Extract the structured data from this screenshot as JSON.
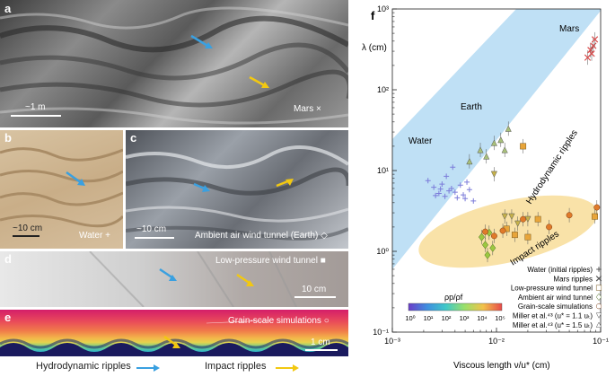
{
  "photos": {
    "a": {
      "label": "a",
      "scale": "~1 m",
      "caption": "Mars ×"
    },
    "b": {
      "label": "b",
      "scale": "~10 cm",
      "caption": "Water +"
    },
    "c": {
      "label": "c",
      "scale": "~10 cm",
      "caption": "Ambient air wind tunnel (Earth) ◇"
    },
    "d": {
      "label": "d",
      "scale": "10 cm",
      "caption": "Low-pressure wind tunnel ■"
    },
    "e": {
      "label": "e",
      "scale": "1 cm",
      "caption": "Grain-scale simulations ○"
    }
  },
  "bottom_legend": {
    "hydro": "Hydrodynamic ripples",
    "impact": "Impact ripples",
    "hydro_color": "#3aa0e0",
    "impact_color": "#f2c811"
  },
  "chart_data": {
    "type": "scatter",
    "panel_label": "f",
    "xlabel": "Viscous length ν/u* (cm)",
    "ylabel": "λ (cm)",
    "xscale": "log",
    "yscale": "log",
    "xlim": [
      0.001,
      0.1
    ],
    "ylim": [
      0.1,
      1000
    ],
    "x_ticks": [
      "10⁻³",
      "10⁻²",
      "10⁻¹"
    ],
    "y_ticks": [
      "10⁻¹",
      "10⁰",
      "10¹",
      "10²",
      "10³"
    ],
    "bands": [
      {
        "name": "Hydrodynamic ripples",
        "color": "#bfe0f5"
      },
      {
        "name": "Impact ripples",
        "color": "#f9e2a8"
      }
    ],
    "annotations": [
      "Mars",
      "Earth",
      "Water",
      "Hydrodynamic ripples",
      "Impact ripples"
    ],
    "colorbar": {
      "label": "ρp/ρf",
      "ticks": [
        "10⁰",
        "10¹",
        "10²",
        "10³",
        "10⁴",
        "10⁵"
      ]
    },
    "legend": [
      {
        "name": "Water (initial ripples)",
        "marker": "+"
      },
      {
        "name": "Mars ripples",
        "marker": "×"
      },
      {
        "name": "Low-pressure wind tunnel",
        "marker": "□"
      },
      {
        "name": "Ambient air wind tunnel",
        "marker": "◇"
      },
      {
        "name": "Grain-scale simulations",
        "marker": "○"
      },
      {
        "name": "Miller et al.⁴³ (u* = 1.1 uₜ)",
        "marker": "▽"
      },
      {
        "name": "Miller et al.⁴³ (u* = 1.5 uₜ)",
        "marker": "△"
      }
    ],
    "series": [
      {
        "name": "Water (initial ripples)",
        "marker": "+",
        "color": "#7b7bd9",
        "points": [
          [
            0.0022,
            7.5
          ],
          [
            0.0025,
            6.2
          ],
          [
            0.0028,
            5.2
          ],
          [
            0.003,
            6.8
          ],
          [
            0.0032,
            4.8
          ],
          [
            0.0033,
            8.5
          ],
          [
            0.0035,
            5.6
          ],
          [
            0.0037,
            6.0
          ],
          [
            0.004,
            5.4
          ],
          [
            0.0042,
            4.6
          ],
          [
            0.0045,
            6.6
          ],
          [
            0.0048,
            5.0
          ],
          [
            0.005,
            4.5
          ],
          [
            0.0052,
            7.2
          ],
          [
            0.0055,
            5.8
          ],
          [
            0.0026,
            4.9
          ],
          [
            0.0038,
            11.0
          ],
          [
            0.006,
            4.2
          ],
          [
            0.0029,
            5.9
          ]
        ]
      },
      {
        "name": "Mars ripples",
        "marker": "×",
        "color": "#d94c4c",
        "points": [
          [
            0.075,
            250
          ],
          [
            0.08,
            310
          ],
          [
            0.085,
            350
          ],
          [
            0.088,
            420
          ],
          [
            0.082,
            280
          ]
        ]
      },
      {
        "name": "Low-pressure wind tunnel",
        "marker": "□",
        "color": "#e8a53a",
        "points": [
          [
            0.0125,
            1.9
          ],
          [
            0.015,
            1.6
          ],
          [
            0.02,
            1.5
          ],
          [
            0.025,
            2.5
          ],
          [
            0.018,
            20.0
          ],
          [
            0.088,
            2.7
          ]
        ]
      },
      {
        "name": "Ambient air wind tunnel",
        "marker": "◇",
        "color": "#9cc840",
        "points": [
          [
            0.0072,
            1.5
          ],
          [
            0.0078,
            1.2
          ],
          [
            0.0085,
            1.7
          ],
          [
            0.0092,
            1.1
          ],
          [
            0.0082,
            0.9
          ]
        ]
      },
      {
        "name": "Grain-scale simulations",
        "marker": "○",
        "color": "#e07a2a",
        "points": [
          [
            0.0078,
            1.75
          ],
          [
            0.0095,
            1.55
          ],
          [
            0.0115,
            1.8
          ],
          [
            0.018,
            2.5
          ],
          [
            0.032,
            2.0
          ],
          [
            0.05,
            2.8
          ],
          [
            0.092,
            3.5
          ]
        ]
      },
      {
        "name": "Miller et al.43 (u* = 1.1 ut)",
        "marker": "▽",
        "color": "#c7b24a",
        "points": [
          [
            0.012,
            2.7
          ],
          [
            0.014,
            2.7
          ],
          [
            0.016,
            2.2
          ],
          [
            0.02,
            2.5
          ],
          [
            0.0095,
            9.0
          ]
        ]
      },
      {
        "name": "Miller et al.43 (u* = 1.5 ut)",
        "marker": "△",
        "color": "#a8c07a",
        "points": [
          [
            0.0055,
            13.0
          ],
          [
            0.007,
            18.0
          ],
          [
            0.008,
            15.0
          ],
          [
            0.0095,
            22.0
          ],
          [
            0.012,
            18.0
          ],
          [
            0.013,
            33.0
          ],
          [
            0.011,
            24.0
          ]
        ]
      }
    ]
  }
}
